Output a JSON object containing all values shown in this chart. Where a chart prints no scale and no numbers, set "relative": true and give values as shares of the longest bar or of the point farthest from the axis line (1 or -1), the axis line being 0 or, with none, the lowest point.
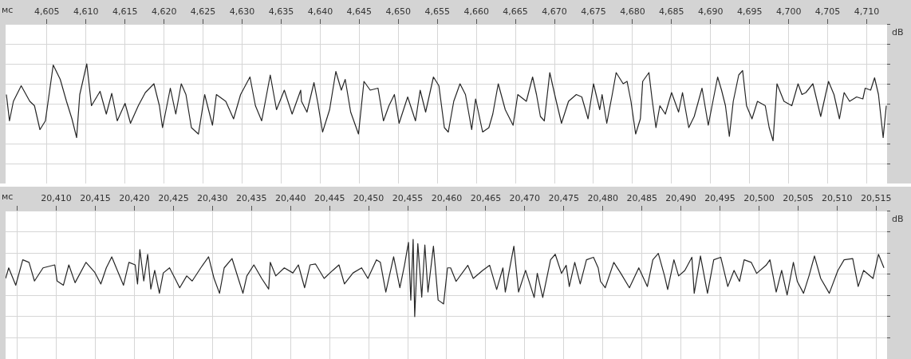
{
  "chart_data": [
    {
      "type": "line",
      "relative": true,
      "xlabel": "мс",
      "ylabel": "dB",
      "color": "#262626",
      "grid": true,
      "xlim": [
        4599.7,
        4712.6
      ],
      "xticks": [
        {
          "value": 4605,
          "label": "4,605"
        },
        {
          "value": 4610,
          "label": "4,610"
        },
        {
          "value": 4615,
          "label": "4,615"
        },
        {
          "value": 4620,
          "label": "4,620"
        },
        {
          "value": 4625,
          "label": "4,625"
        },
        {
          "value": 4630,
          "label": "4,630"
        },
        {
          "value": 4635,
          "label": "4,635"
        },
        {
          "value": 4640,
          "label": "4,640"
        },
        {
          "value": 4645,
          "label": "4,645"
        },
        {
          "value": 4650,
          "label": "4,650"
        },
        {
          "value": 4655,
          "label": "4,655"
        },
        {
          "value": 4660,
          "label": "4,660"
        },
        {
          "value": 4665,
          "label": "4,665"
        },
        {
          "value": 4670,
          "label": "4,670"
        },
        {
          "value": 4675,
          "label": "4,675"
        },
        {
          "value": 4680,
          "label": "4,680"
        },
        {
          "value": 4685,
          "label": "4,685"
        },
        {
          "value": 4690,
          "label": "4,690"
        },
        {
          "value": 4695,
          "label": "4,695"
        },
        {
          "value": 4700,
          "label": "4,700"
        },
        {
          "value": 4705,
          "label": "4,705"
        },
        {
          "value": 4710,
          "label": "4,710"
        }
      ],
      "x": [
        4599.8,
        4600.2,
        4600.7,
        4601.7,
        4602.8,
        4603.4,
        4604.1,
        4604.8,
        4605.8,
        4606.7,
        4607.5,
        4608.2,
        4608.8,
        4609.2,
        4610.1,
        4610.7,
        4611.8,
        4612.6,
        4613.3,
        4614.0,
        4615.0,
        4615.7,
        4616.7,
        4617.6,
        4618.7,
        4619.4,
        4619.8,
        4620.8,
        4621.5,
        4622.2,
        4622.8,
        4623.5,
        4624.4,
        4625.2,
        4626.2,
        4626.7,
        4627.9,
        4628.9,
        4629.8,
        4631.0,
        4631.7,
        4632.5,
        4633.6,
        4634.4,
        4635.4,
        4636.4,
        4637.5,
        4637.6,
        4638.3,
        4639.2,
        4639.7,
        4640.3,
        4641.2,
        4642.0,
        4642.7,
        4643.2,
        4643.9,
        4644.9,
        4645.6,
        4646.4,
        4647.4,
        4648.1,
        4648.8,
        4649.5,
        4650.1,
        4651.2,
        4652.2,
        4652.8,
        4653.5,
        4654.5,
        4655.2,
        4655.9,
        4656.4,
        4657.1,
        4657.9,
        4658.6,
        4659.4,
        4659.9,
        4660.8,
        4661.6,
        4662.1,
        4662.8,
        4663.7,
        4664.7,
        4665.3,
        4666.4,
        4667.2,
        4667.7,
        4668.2,
        4668.7,
        4669.4,
        4670.1,
        4670.9,
        4671.8,
        4672.8,
        4673.5,
        4674.3,
        4675.0,
        4675.8,
        4676.1,
        4676.7,
        4677.4,
        4677.9,
        4678.8,
        4679.3,
        4679.8,
        4680.4,
        4681.0,
        4681.3,
        4682.1,
        4682.5,
        4683.0,
        4683.5,
        4684.2,
        4685.0,
        4685.9,
        4686.4,
        4687.2,
        4687.9,
        4688.9,
        4689.7,
        4690.9,
        4691.4,
        4691.9,
        4692.4,
        4692.9,
        4693.6,
        4694.1,
        4694.6,
        4695.3,
        4696.0,
        4697.0,
        4697.5,
        4698.0,
        4698.5,
        4699.4,
        4700.4,
        4701.2,
        4701.7,
        4702.2,
        4703.1,
        4704.1,
        4705.1,
        4705.8,
        4706.5,
        4707.1,
        4707.8,
        4708.7,
        4709.5,
        4709.8,
        4710.5,
        4711.0,
        4711.5,
        4712.1,
        4712.5
      ],
      "values": [
        0.23,
        -0.43,
        0.06,
        0.45,
        0.06,
        -0.05,
        -0.65,
        -0.43,
        0.97,
        0.61,
        0.06,
        -0.38,
        -0.85,
        0.23,
        1,
        -0.05,
        0.31,
        -0.26,
        0.26,
        -0.43,
        0.01,
        -0.49,
        -0.05,
        0.28,
        0.5,
        -0.05,
        -0.6,
        0.39,
        -0.26,
        0.5,
        0.23,
        -0.6,
        -0.76,
        0.23,
        -0.54,
        0.23,
        0.06,
        -0.38,
        0.23,
        0.67,
        -0.05,
        -0.43,
        0.72,
        -0.15,
        0.34,
        -0.26,
        0.34,
        0.06,
        -0.21,
        0.53,
        0.01,
        -0.71,
        -0.15,
        0.81,
        0.34,
        0.61,
        -0.21,
        -0.76,
        0.56,
        0.34,
        0.39,
        -0.43,
        -0.05,
        0.23,
        -0.49,
        0.17,
        -0.43,
        0.34,
        -0.21,
        0.67,
        0.45,
        -0.6,
        -0.71,
        0.06,
        0.5,
        0.23,
        -0.65,
        0.12,
        -0.71,
        -0.6,
        -0.26,
        0.5,
        -0.15,
        -0.54,
        0.23,
        0.06,
        0.67,
        0.23,
        -0.32,
        -0.43,
        0.78,
        0.17,
        -0.49,
        0.06,
        0.23,
        0.17,
        -0.38,
        0.5,
        -0.15,
        0.23,
        -0.49,
        0.23,
        0.78,
        0.5,
        0.56,
        0.06,
        -0.76,
        -0.38,
        0.56,
        0.78,
        0.12,
        -0.6,
        -0.05,
        -0.26,
        0.28,
        -0.21,
        0.28,
        -0.6,
        -0.32,
        0.39,
        -0.54,
        0.67,
        0.34,
        -0.05,
        -0.82,
        0.06,
        0.72,
        0.83,
        -0.05,
        -0.38,
        0.06,
        -0.05,
        -0.6,
        -0.93,
        0.5,
        0.06,
        -0.05,
        0.5,
        0.23,
        0.28,
        0.5,
        -0.32,
        0.56,
        0.23,
        -0.38,
        0.28,
        0.06,
        0.17,
        0.12,
        0.39,
        0.34,
        0.65,
        0.23,
        -0.85,
        -0.05
      ]
    },
    {
      "type": "line",
      "relative": true,
      "xlabel": "мс",
      "ylabel": "dB",
      "color": "#262626",
      "grid": true,
      "xlim": [
        20403.5,
        20516.4
      ],
      "xticks": [
        {
          "value": 20405,
          "label": null
        },
        {
          "value": 20410,
          "label": "20,410"
        },
        {
          "value": 20415,
          "label": "20,415"
        },
        {
          "value": 20420,
          "label": "20,420"
        },
        {
          "value": 20425,
          "label": "20,425"
        },
        {
          "value": 20430,
          "label": "20,430"
        },
        {
          "value": 20435,
          "label": "20,435"
        },
        {
          "value": 20440,
          "label": "20,440"
        },
        {
          "value": 20445,
          "label": "20,445"
        },
        {
          "value": 20450,
          "label": "20,450"
        },
        {
          "value": 20455,
          "label": "20,455"
        },
        {
          "value": 20460,
          "label": "20,460"
        },
        {
          "value": 20465,
          "label": "20,465"
        },
        {
          "value": 20470,
          "label": "20,470"
        },
        {
          "value": 20475,
          "label": "20,475"
        },
        {
          "value": 20480,
          "label": "20,480"
        },
        {
          "value": 20485,
          "label": "20,485"
        },
        {
          "value": 20490,
          "label": "20,490"
        },
        {
          "value": 20495,
          "label": "20,495"
        },
        {
          "value": 20500,
          "label": "20,500"
        },
        {
          "value": 20505,
          "label": "20,505"
        },
        {
          "value": 20510,
          "label": "20,510"
        },
        {
          "value": 20515,
          "label": "20,515"
        }
      ],
      "x": [
        20403.5,
        20403.9,
        20404.8,
        20405.7,
        20406.5,
        20407.2,
        20408.3,
        20409.8,
        20410.1,
        20410.9,
        20411.6,
        20412.4,
        20413.8,
        20414.9,
        20415.7,
        20416.4,
        20417.1,
        20417.9,
        20418.6,
        20419.3,
        20420.1,
        20420.4,
        20420.7,
        20421.2,
        20421.7,
        20422.1,
        20422.6,
        20423.2,
        20423.7,
        20424.5,
        20425.2,
        20425.8,
        20426.7,
        20427.4,
        20428.5,
        20429.5,
        20430.2,
        20430.9,
        20431.5,
        20432.5,
        20433.3,
        20433.9,
        20434.4,
        20435.3,
        20436.3,
        20437.2,
        20437.4,
        20438.1,
        20439.2,
        20440.3,
        20441.0,
        20441.8,
        20442.5,
        20443.2,
        20444.3,
        20445.4,
        20446.2,
        20446.9,
        20448.0,
        20449.1,
        20449.9,
        20451.0,
        20451.5,
        20452.2,
        20453.2,
        20454.0,
        20454.6,
        20455.1,
        20455.4,
        20455.7,
        20455.9,
        20456.3,
        20456.8,
        20457.2,
        20457.6,
        20458.3,
        20458.9,
        20459.6,
        20460.1,
        20460.5,
        20461.2,
        20462.7,
        20463.4,
        20464.6,
        20465.5,
        20466.4,
        20467.2,
        20467.5,
        20468.3,
        20468.6,
        20469.2,
        20470.1,
        20471.2,
        20471.6,
        20472.3,
        20473.3,
        20473.9,
        20474.7,
        20475.3,
        20475.7,
        20476.4,
        20477.1,
        20477.9,
        20478.8,
        20479.4,
        20479.7,
        20480.3,
        20481.4,
        20482.3,
        20483.4,
        20484.6,
        20485.7,
        20486.4,
        20487.1,
        20487.9,
        20488.3,
        20489.1,
        20489.7,
        20490.5,
        20491.4,
        20491.7,
        20492.5,
        20493.4,
        20494.2,
        20495.1,
        20496.0,
        20496.8,
        20497.5,
        20498.1,
        20499.0,
        20499.7,
        20500.9,
        20501.4,
        20502.2,
        20502.9,
        20503.6,
        20504.4,
        20504.9,
        20505.7,
        20506.4,
        20507.1,
        20507.9,
        20509.0,
        20510.1,
        20510.9,
        20512.0,
        20512.7,
        20513.4,
        20514.6,
        20515.3,
        20516.0
      ],
      "values": [
        -0.1,
        0.15,
        -0.26,
        0.34,
        0.28,
        -0.16,
        0.15,
        0.22,
        -0.16,
        -0.26,
        0.22,
        -0.2,
        0.28,
        0.05,
        -0.23,
        0.15,
        0.41,
        0.05,
        -0.26,
        0.28,
        0.22,
        -0.23,
        0.58,
        -0.16,
        0.47,
        -0.35,
        0.09,
        -0.45,
        0.03,
        0.15,
        -0.1,
        -0.32,
        -0.04,
        -0.16,
        0.15,
        0.41,
        -0.1,
        -0.45,
        0.15,
        0.37,
        -0.1,
        -0.45,
        -0.04,
        0.22,
        -0.1,
        -0.35,
        0.28,
        -0.04,
        0.15,
        0.03,
        0.22,
        -0.32,
        0.22,
        0.24,
        -0.1,
        0.09,
        0.22,
        -0.23,
        0.03,
        0.15,
        -0.1,
        0.34,
        0.28,
        -0.42,
        0.41,
        -0.32,
        0.22,
        0.75,
        -0.61,
        0.82,
        -1,
        0.72,
        -0.54,
        0.69,
        -0.42,
        0.66,
        -0.61,
        -0.7,
        0.15,
        0.15,
        -0.17,
        0.21,
        -0.1,
        0.09,
        0.21,
        -0.36,
        0.15,
        -0.42,
        0.37,
        0.66,
        -0.42,
        0.09,
        -0.55,
        0.02,
        -0.55,
        0.34,
        0.47,
        0.02,
        0.21,
        -0.29,
        0.28,
        -0.23,
        0.34,
        0.4,
        0.15,
        -0.17,
        -0.32,
        0.28,
        0.02,
        -0.32,
        0.15,
        -0.29,
        0.34,
        0.49,
        -0.04,
        -0.36,
        0.34,
        -0.04,
        0.09,
        0.4,
        -0.45,
        0.43,
        -0.45,
        0.34,
        0.4,
        -0.29,
        0.09,
        -0.17,
        0.34,
        0.28,
        0.02,
        0.21,
        0.34,
        -0.42,
        0.09,
        -0.49,
        0.28,
        -0.17,
        -0.45,
        -0.04,
        0.43,
        -0.1,
        -0.45,
        0.09,
        0.34,
        0.37,
        -0.29,
        0.09,
        -0.1,
        0.47,
        0.15
      ]
    }
  ]
}
